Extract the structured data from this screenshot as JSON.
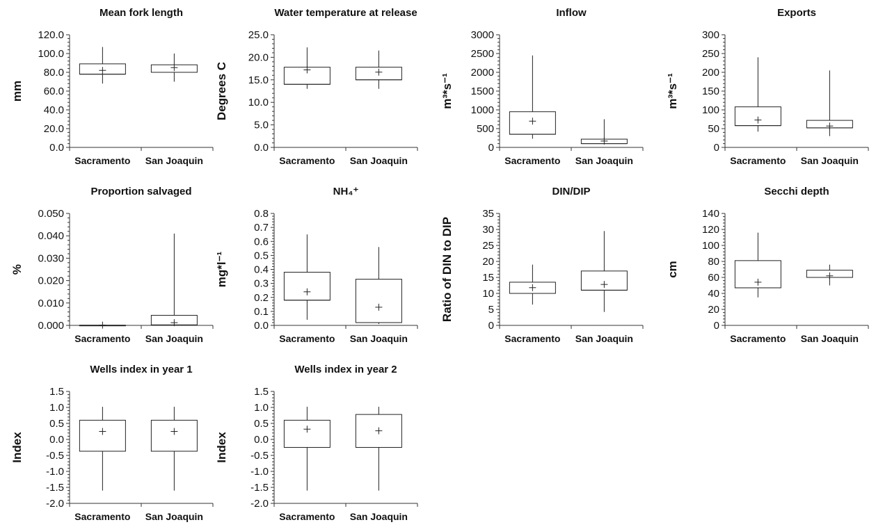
{
  "chart_data": [
    {
      "type": "boxplot",
      "title": "Mean fork length",
      "ylabel": "mm",
      "ylim": [
        0,
        120
      ],
      "yticks": [
        0,
        20,
        40,
        60,
        80,
        100,
        120
      ],
      "ytick_labels": [
        "0.0",
        "20.0",
        "40.0",
        "60.0",
        "80.0",
        "100.0",
        "120.0"
      ],
      "ytick_decimals": 1,
      "categories": [
        "Sacramento",
        "San Joaquin"
      ],
      "boxes": [
        {
          "min": 68,
          "q1": 78,
          "median": 78,
          "q3": 89,
          "max": 107,
          "mean": 82
        },
        {
          "min": 70,
          "q1": 80,
          "median": 80,
          "q3": 88,
          "max": 100,
          "mean": 85
        }
      ]
    },
    {
      "type": "boxplot",
      "title": "Water temperature at release",
      "ylabel": "Degrees C",
      "ylim": [
        0,
        25
      ],
      "yticks": [
        0,
        5,
        10,
        15,
        20,
        25
      ],
      "ytick_labels": [
        "0.0",
        "5.0",
        "10.0",
        "15.0",
        "20.0",
        "25.0"
      ],
      "ytick_decimals": 1,
      "categories": [
        "Sacramento",
        "San Joaquin"
      ],
      "boxes": [
        {
          "min": 13,
          "q1": 14,
          "median": 14,
          "q3": 17.8,
          "max": 22.2,
          "mean": 17.2
        },
        {
          "min": 13,
          "q1": 15,
          "median": 15,
          "q3": 17.8,
          "max": 21.5,
          "mean": 16.7
        }
      ]
    },
    {
      "type": "boxplot",
      "title": "Inflow",
      "ylabel": "m³*s⁻¹",
      "ylim": [
        0,
        3000
      ],
      "yticks": [
        0,
        500,
        1000,
        1500,
        2000,
        2500,
        3000
      ],
      "ytick_labels": [
        "0",
        "500",
        "1000",
        "1500",
        "2000",
        "2500",
        "3000"
      ],
      "ytick_decimals": 0,
      "categories": [
        "Sacramento",
        "San Joaquin"
      ],
      "boxes": [
        {
          "min": 230,
          "q1": 350,
          "median": 350,
          "q3": 950,
          "max": 2450,
          "mean": 700
        },
        {
          "min": 90,
          "q1": 100,
          "median": 100,
          "q3": 220,
          "max": 750,
          "mean": 170
        }
      ]
    },
    {
      "type": "boxplot",
      "title": "Exports",
      "ylabel": "m³*s⁻¹",
      "ylim": [
        0,
        300
      ],
      "yticks": [
        0,
        50,
        100,
        150,
        200,
        250,
        300
      ],
      "ytick_labels": [
        "0",
        "50",
        "100",
        "150",
        "200",
        "250",
        "300"
      ],
      "ytick_decimals": 0,
      "categories": [
        "Sacramento",
        "San Joaquin"
      ],
      "boxes": [
        {
          "min": 42,
          "q1": 58,
          "median": 58,
          "q3": 108,
          "max": 240,
          "mean": 73
        },
        {
          "min": 30,
          "q1": 52,
          "median": 52,
          "q3": 72,
          "max": 205,
          "mean": 57
        }
      ]
    },
    {
      "type": "boxplot",
      "title": "Proportion salvaged",
      "ylabel": "%",
      "ylim": [
        0,
        0.05
      ],
      "yticks": [
        0,
        0.01,
        0.02,
        0.03,
        0.04,
        0.05
      ],
      "ytick_labels": [
        "0.000",
        "0.010",
        "0.020",
        "0.030",
        "0.040",
        "0.050"
      ],
      "ytick_decimals": 3,
      "categories": [
        "Sacramento",
        "San Joaquin"
      ],
      "boxes": [
        {
          "min": 0,
          "q1": 0,
          "median": 0,
          "q3": 0.0001,
          "max": 0.0002,
          "mean": 0.0001
        },
        {
          "min": 0,
          "q1": 0.0002,
          "median": 0.0002,
          "q3": 0.0045,
          "max": 0.041,
          "mean": 0.0012
        }
      ]
    },
    {
      "type": "boxplot",
      "title": "NH₄⁺",
      "ylabel": "mg*l⁻¹",
      "ylim": [
        0,
        0.8
      ],
      "yticks": [
        0,
        0.1,
        0.2,
        0.3,
        0.4,
        0.5,
        0.6,
        0.7,
        0.8
      ],
      "ytick_labels": [
        "0.0",
        "0.1",
        "0.2",
        "0.3",
        "0.4",
        "0.5",
        "0.6",
        "0.7",
        "0.8"
      ],
      "ytick_decimals": 1,
      "categories": [
        "Sacramento",
        "San Joaquin"
      ],
      "boxes": [
        {
          "min": 0.04,
          "q1": 0.18,
          "median": 0.18,
          "q3": 0.38,
          "max": 0.65,
          "mean": 0.24
        },
        {
          "min": 0.01,
          "q1": 0.02,
          "median": 0.02,
          "q3": 0.33,
          "max": 0.56,
          "mean": 0.13
        }
      ]
    },
    {
      "type": "boxplot",
      "title": "DIN/DIP",
      "ylabel": "Ratio of DIN to DIP",
      "ylim": [
        0,
        35
      ],
      "yticks": [
        0,
        5,
        10,
        15,
        20,
        25,
        30,
        35
      ],
      "ytick_labels": [
        "0",
        "5",
        "10",
        "15",
        "20",
        "25",
        "30",
        "35"
      ],
      "ytick_decimals": 0,
      "categories": [
        "Sacramento",
        "San Joaquin"
      ],
      "boxes": [
        {
          "min": 6.5,
          "q1": 10,
          "median": 10,
          "q3": 13.5,
          "max": 19,
          "mean": 11.8
        },
        {
          "min": 4.2,
          "q1": 11,
          "median": 11,
          "q3": 17,
          "max": 29.5,
          "mean": 12.8
        }
      ]
    },
    {
      "type": "boxplot",
      "title": "Secchi depth",
      "ylabel": "cm",
      "ylim": [
        0,
        140
      ],
      "yticks": [
        0,
        20,
        40,
        60,
        80,
        100,
        120,
        140
      ],
      "ytick_labels": [
        "0",
        "20",
        "40",
        "60",
        "80",
        "100",
        "120",
        "140"
      ],
      "ytick_decimals": 0,
      "categories": [
        "Sacramento",
        "San Joaquin"
      ],
      "boxes": [
        {
          "min": 35,
          "q1": 47,
          "median": 47,
          "q3": 81,
          "max": 116,
          "mean": 54
        },
        {
          "min": 50,
          "q1": 60,
          "median": 60,
          "q3": 69,
          "max": 76,
          "mean": 62
        }
      ]
    },
    {
      "type": "boxplot",
      "title": "Wells index in year 1",
      "ylabel": "Index",
      "ylim": [
        -2,
        1.5
      ],
      "yticks": [
        -2,
        -1.5,
        -1,
        -0.5,
        0,
        0.5,
        1,
        1.5
      ],
      "ytick_labels": [
        "-2.0",
        "-1.5",
        "-1.0",
        "-0.5",
        "0.0",
        "0.5",
        "1.0",
        "1.5"
      ],
      "ytick_decimals": 1,
      "categories": [
        "Sacramento",
        "San Joaquin"
      ],
      "boxes": [
        {
          "min": -1.6,
          "q1": -0.37,
          "median": -0.37,
          "q3": 0.6,
          "max": 1.02,
          "mean": 0.25
        },
        {
          "min": -1.6,
          "q1": -0.37,
          "median": -0.37,
          "q3": 0.6,
          "max": 1.02,
          "mean": 0.25
        }
      ]
    },
    {
      "type": "boxplot",
      "title": "Wells index in year 2",
      "ylabel": "Index",
      "ylim": [
        -2,
        1.5
      ],
      "yticks": [
        -2,
        -1.5,
        -1,
        -0.5,
        0,
        0.5,
        1,
        1.5
      ],
      "ytick_labels": [
        "-2.0",
        "-1.5",
        "-1.0",
        "-0.5",
        "0.0",
        "0.5",
        "1.0",
        "1.5"
      ],
      "ytick_decimals": 1,
      "categories": [
        "Sacramento",
        "San Joaquin"
      ],
      "boxes": [
        {
          "min": -1.6,
          "q1": -0.25,
          "median": -0.25,
          "q3": 0.6,
          "max": 1.02,
          "mean": 0.32
        },
        {
          "min": -1.6,
          "q1": -0.25,
          "median": -0.25,
          "q3": 0.78,
          "max": 1.02,
          "mean": 0.27
        }
      ]
    }
  ]
}
